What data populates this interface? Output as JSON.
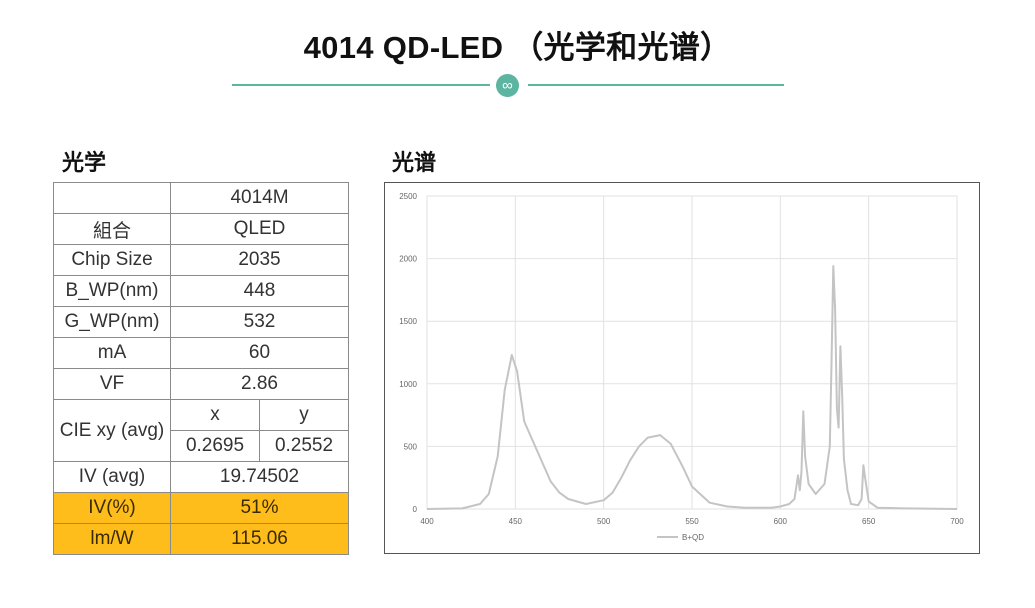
{
  "header": {
    "title": "4014 QD-LED （光学和光谱）",
    "ornament_glyph": "∞"
  },
  "sections": {
    "optics": "光学",
    "spectrum": "光谱"
  },
  "table": {
    "model": "4014M",
    "rows": [
      {
        "label": "組合",
        "value": "QLED"
      },
      {
        "label": "Chip Size",
        "value": "2035"
      },
      {
        "label": "B_WP(nm)",
        "value": "448"
      },
      {
        "label": "G_WP(nm)",
        "value": "532"
      },
      {
        "label": "mA",
        "value": "60"
      },
      {
        "label": "VF",
        "value": "2.86"
      }
    ],
    "cie": {
      "label": "CIE xy (avg)",
      "x_header": "x",
      "y_header": "y",
      "x": "0.2695",
      "y": "0.2552"
    },
    "iv": {
      "label": "IV (avg)",
      "value": "19.74502"
    },
    "iv_pct": {
      "label": "IV(%)",
      "value": "51%"
    },
    "lmw": {
      "label": "lm/W",
      "value": "115.06"
    }
  },
  "colors": {
    "blue": "#2e7fc8",
    "green": "#2fae6a",
    "highlight": "#ffbd1c",
    "line": "#c4c4c4",
    "accent": "#5bb5a0"
  },
  "chart_data": {
    "type": "line",
    "xlim": [
      400,
      700
    ],
    "ylim": [
      0,
      2500
    ],
    "x_ticks": [
      400,
      450,
      500,
      550,
      600,
      650,
      700
    ],
    "y_ticks": [
      0,
      500,
      1000,
      1500,
      2000,
      2500
    ],
    "grid": true,
    "legend": "bottom",
    "series": [
      {
        "name": "B+QD",
        "x": [
          400,
          420,
          430,
          435,
          440,
          444,
          448,
          451,
          455,
          460,
          465,
          470,
          475,
          480,
          490,
          500,
          505,
          510,
          515,
          520,
          525,
          532,
          538,
          545,
          550,
          560,
          570,
          580,
          595,
          600,
          605,
          608,
          610,
          611,
          612,
          613,
          614,
          616,
          620,
          625,
          628,
          629,
          630,
          631,
          632,
          633,
          634,
          635,
          636,
          638,
          640,
          644,
          646,
          647,
          648,
          650,
          655,
          670,
          700
        ],
        "y": [
          0,
          5,
          40,
          120,
          420,
          950,
          1230,
          1100,
          700,
          540,
          380,
          220,
          130,
          80,
          40,
          70,
          130,
          250,
          390,
          500,
          570,
          590,
          520,
          330,
          180,
          50,
          20,
          10,
          10,
          20,
          40,
          80,
          270,
          150,
          300,
          780,
          420,
          200,
          120,
          200,
          500,
          1200,
          1940,
          1600,
          800,
          650,
          1300,
          900,
          400,
          150,
          40,
          30,
          80,
          350,
          250,
          60,
          10,
          5,
          0
        ]
      }
    ]
  }
}
